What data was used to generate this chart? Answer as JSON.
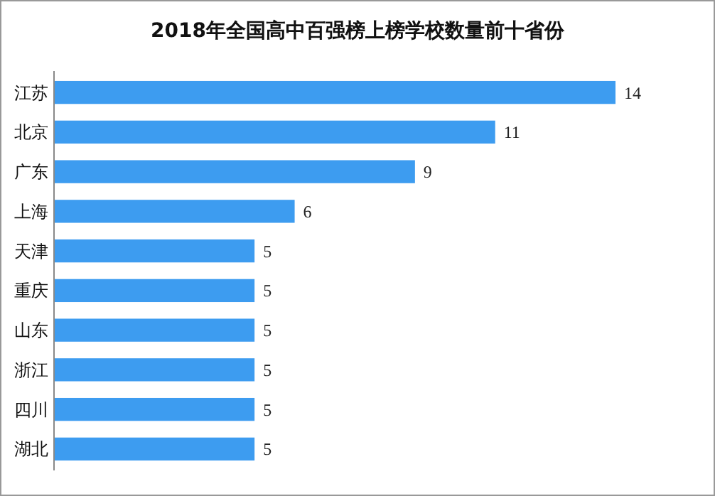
{
  "chart_data": {
    "type": "bar",
    "orientation": "horizontal",
    "title": "2018年全国高中百强榜上榜学校数量前十省份",
    "categories": [
      "江苏",
      "北京",
      "广东",
      "上海",
      "天津",
      "重庆",
      "山东",
      "浙江",
      "四川",
      "湖北"
    ],
    "values": [
      14,
      11,
      9,
      6,
      5,
      5,
      5,
      5,
      5,
      5
    ],
    "color": "#3d9cf0",
    "data_labels": true
  }
}
